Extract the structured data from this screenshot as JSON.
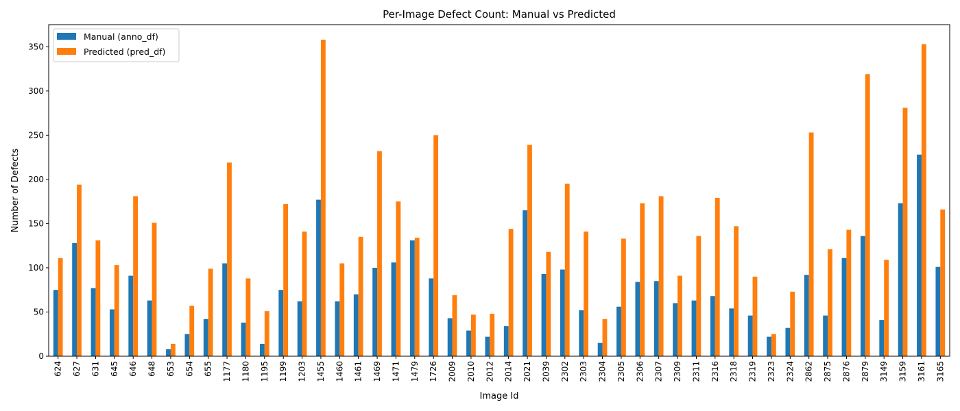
{
  "chart_data": {
    "type": "bar",
    "title": "Per-Image Defect Count: Manual vs Predicted",
    "xlabel": "Image Id",
    "ylabel": "Number of Defects",
    "ylim": [
      0,
      375
    ],
    "yticks": [
      0,
      50,
      100,
      150,
      200,
      250,
      300,
      350
    ],
    "legend_position": "top-left",
    "categories": [
      "624",
      "627",
      "631",
      "645",
      "646",
      "648",
      "653",
      "654",
      "655",
      "1177",
      "1180",
      "1195",
      "1199",
      "1203",
      "1455",
      "1460",
      "1461",
      "1469",
      "1471",
      "1479",
      "1726",
      "2009",
      "2010",
      "2012",
      "2014",
      "2021",
      "2039",
      "2302",
      "2303",
      "2304",
      "2305",
      "2306",
      "2307",
      "2309",
      "2311",
      "2316",
      "2318",
      "2319",
      "2323",
      "2324",
      "2862",
      "2875",
      "2876",
      "2879",
      "3149",
      "3159",
      "3161",
      "3165"
    ],
    "series": [
      {
        "name": "Manual (anno_df)",
        "color": "#1f77b4",
        "values": [
          75,
          128,
          77,
          53,
          91,
          63,
          8,
          25,
          42,
          105,
          38,
          14,
          75,
          62,
          177,
          62,
          70,
          100,
          106,
          131,
          88,
          43,
          29,
          22,
          34,
          165,
          93,
          98,
          52,
          15,
          56,
          84,
          85,
          60,
          63,
          68,
          54,
          46,
          22,
          32,
          92,
          46,
          111,
          136,
          41,
          173,
          228,
          101
        ]
      },
      {
        "name": "Predicted (pred_df)",
        "color": "#ff7f0e",
        "values": [
          111,
          194,
          131,
          103,
          181,
          151,
          14,
          57,
          99,
          219,
          88,
          51,
          172,
          141,
          358,
          105,
          135,
          232,
          175,
          134,
          250,
          69,
          47,
          48,
          144,
          239,
          118,
          195,
          141,
          42,
          133,
          173,
          181,
          91,
          136,
          179,
          147,
          90,
          25,
          73,
          253,
          121,
          143,
          319,
          109,
          281,
          353,
          166
        ]
      }
    ]
  }
}
